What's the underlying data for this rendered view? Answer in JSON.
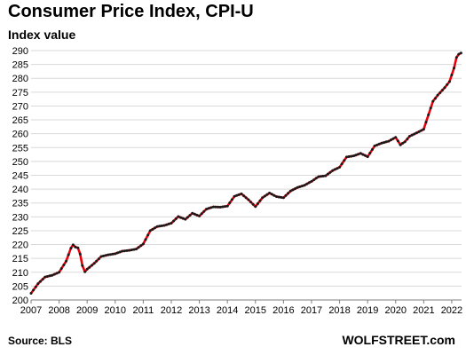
{
  "chart_data": {
    "type": "line",
    "title": "Consumer Price Index, CPI-U",
    "ylabel": "Index value",
    "xlabel": "",
    "source": "Source: BLS",
    "brand": "WOLFSTREET.com",
    "ylim": [
      200,
      290
    ],
    "yticks": [
      200,
      205,
      210,
      215,
      220,
      225,
      230,
      235,
      240,
      245,
      250,
      255,
      260,
      265,
      270,
      275,
      280,
      285,
      290
    ],
    "xlim": [
      2007,
      2022.35
    ],
    "xticks": [
      "2007",
      "2008",
      "2009",
      "2010",
      "2011",
      "2012",
      "2013",
      "2014",
      "2015",
      "2016",
      "2017",
      "2018",
      "2019",
      "2020",
      "2021",
      "2022"
    ],
    "grid": true,
    "line_color": "#e8000b",
    "marker_color": "#1a1a1a",
    "series": [
      {
        "name": "",
        "x": [
          2007.0,
          2007.25,
          2007.5,
          2007.75,
          2008.0,
          2008.25,
          2008.42,
          2008.5,
          2008.58,
          2008.67,
          2008.75,
          2008.83,
          2008.92,
          2009.0,
          2009.25,
          2009.5,
          2009.75,
          2010.0,
          2010.25,
          2010.5,
          2010.75,
          2011.0,
          2011.25,
          2011.5,
          2011.75,
          2012.0,
          2012.25,
          2012.5,
          2012.75,
          2013.0,
          2013.25,
          2013.5,
          2013.75,
          2014.0,
          2014.25,
          2014.5,
          2014.75,
          2015.0,
          2015.25,
          2015.5,
          2015.75,
          2016.0,
          2016.25,
          2016.5,
          2016.75,
          2017.0,
          2017.25,
          2017.5,
          2017.75,
          2018.0,
          2018.25,
          2018.5,
          2018.75,
          2019.0,
          2019.25,
          2019.5,
          2019.75,
          2020.0,
          2020.17,
          2020.33,
          2020.5,
          2020.75,
          2021.0,
          2021.17,
          2021.33,
          2021.5,
          2021.75,
          2021.92,
          2022.0,
          2022.08,
          2022.17,
          2022.25,
          2022.33
        ],
        "y": [
          202.4,
          205.9,
          208.3,
          208.9,
          210.0,
          214.0,
          218.7,
          219.9,
          219.1,
          218.8,
          216.6,
          212.4,
          210.2,
          211.1,
          213.2,
          215.7,
          216.3,
          216.7,
          217.6,
          217.9,
          218.4,
          220.2,
          225.0,
          226.5,
          226.9,
          227.7,
          230.1,
          229.1,
          231.3,
          230.3,
          232.8,
          233.6,
          233.5,
          233.9,
          237.4,
          238.3,
          236.2,
          233.7,
          236.9,
          238.6,
          237.3,
          236.9,
          239.3,
          240.6,
          241.4,
          242.8,
          244.5,
          244.8,
          246.7,
          247.9,
          251.6,
          252.0,
          252.9,
          251.7,
          255.6,
          256.6,
          257.3,
          258.7,
          256.0,
          257.1,
          259.1,
          260.3,
          261.6,
          266.8,
          271.7,
          273.9,
          276.6,
          278.8,
          281.2,
          283.7,
          287.5,
          288.7,
          289.1
        ]
      }
    ]
  }
}
